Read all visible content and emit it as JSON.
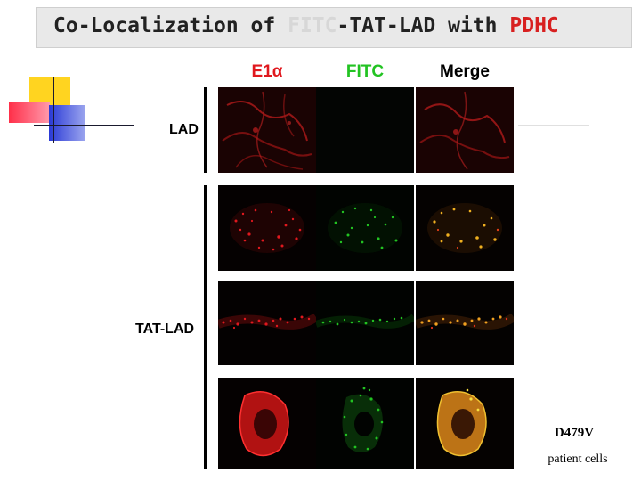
{
  "title": {
    "prefix": "Co-Localization of ",
    "fitc": "FITC",
    "middle": "-TAT-LAD with ",
    "pdhc": "PDHC"
  },
  "columns": [
    {
      "label": "E1α",
      "color": "#e0181e"
    },
    {
      "label": "FITC",
      "color": "#22c322"
    },
    {
      "label": "Merge",
      "color": "#000000"
    }
  ],
  "rows": [
    {
      "label": "LAD"
    },
    {
      "label": "TAT-LAD"
    }
  ],
  "patient": {
    "id": "D479V",
    "description": "patient cells"
  },
  "colors": {
    "red_channel": "#e0181e",
    "green_channel": "#22c322",
    "merge_channel": "#f0b020",
    "title_accent": "#d82020"
  }
}
